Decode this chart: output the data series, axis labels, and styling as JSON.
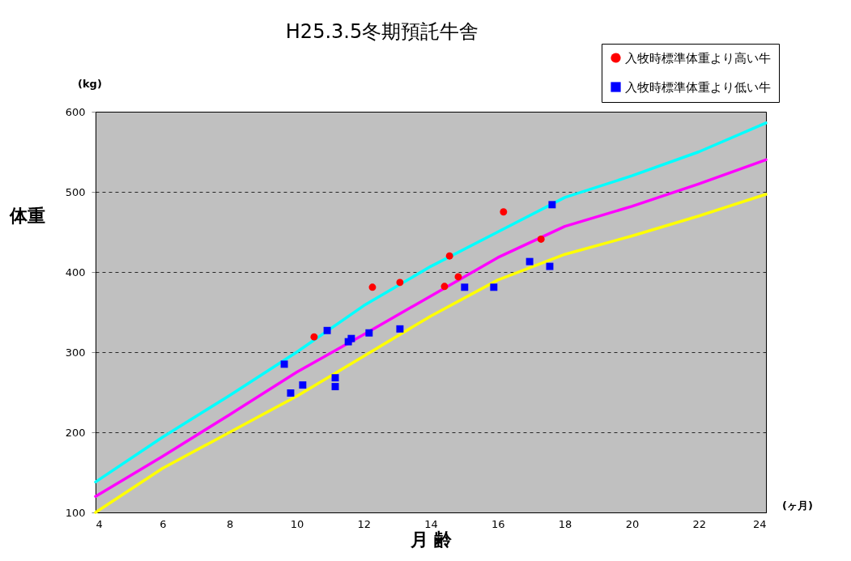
{
  "chart_data": {
    "type": "scatter",
    "title": "H25.3.5冬期預託牛舎",
    "xlabel": "月 齢",
    "ylabel": "体重",
    "annotations": [
      "(kg)",
      "(ヶ月)"
    ],
    "xlim": [
      4,
      24
    ],
    "xticks": [
      4,
      6,
      8,
      10,
      12,
      14,
      16,
      18,
      20,
      22,
      24
    ],
    "ylim": [
      100,
      600
    ],
    "yticks": [
      100,
      200,
      300,
      400,
      500,
      600
    ],
    "grid": "y",
    "legend": "top right",
    "series": [
      {
        "type": "line",
        "color": "#00ffff",
        "x": [
          4,
          6,
          8,
          10,
          12,
          14,
          16,
          18,
          20,
          22,
          24
        ],
        "values": [
          138,
          194,
          246,
          300,
          358,
          407,
          450,
          493,
          520,
          550,
          586
        ]
      },
      {
        "type": "line",
        "color": "#ff00ff",
        "x": [
          4,
          6,
          8,
          10,
          12,
          14,
          16,
          18,
          20,
          22,
          24
        ],
        "values": [
          120,
          170,
          222,
          275,
          322,
          370,
          418,
          457,
          482,
          510,
          540
        ]
      },
      {
        "type": "line",
        "color": "#ffff00",
        "x": [
          4,
          6,
          8,
          10,
          12,
          14,
          16,
          18,
          20,
          22,
          24
        ],
        "values": [
          100,
          155,
          200,
          245,
          295,
          345,
          390,
          422,
          445,
          470,
          497
        ]
      },
      {
        "name": "入牧時標準体重より高い牛",
        "color": "#ff0000",
        "marker": "circle",
        "x": [
          10.52,
          12.26,
          13.08,
          14.41,
          14.56,
          14.82,
          16.17,
          17.29
        ],
        "values": [
          319,
          381,
          387,
          382,
          420,
          394,
          475,
          441
        ]
      },
      {
        "name": "入牧時標準体重より低い牛",
        "color": "#0000ff",
        "marker": "square",
        "x": [
          9.63,
          9.82,
          10.18,
          10.91,
          11.15,
          11.15,
          11.54,
          11.63,
          12.16,
          13.08,
          15.01,
          15.88,
          16.95,
          17.55,
          17.62
        ],
        "values": [
          285,
          249,
          259,
          327,
          268,
          257,
          313,
          317,
          324,
          329,
          381,
          381,
          413,
          407,
          484
        ]
      }
    ]
  }
}
